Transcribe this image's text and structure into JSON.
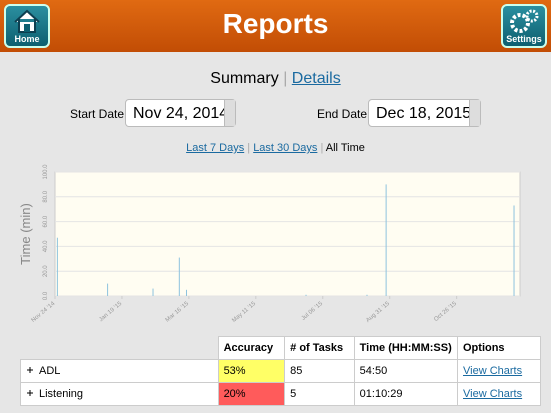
{
  "header": {
    "title": "Reports",
    "left_button": "Home",
    "right_button": "Settings"
  },
  "tabs": {
    "active": "Summary",
    "other": "Details"
  },
  "filters": {
    "start_label": "Start Date",
    "start_value": "Nov 24, 2014",
    "end_label": "End Date",
    "end_value": "Dec 18, 2015",
    "ranges": [
      "Last 7 Days",
      "Last 30 Days",
      "All Time"
    ]
  },
  "chart_data": {
    "type": "bar",
    "y_label": "Time (min)",
    "color": "#8ec3de",
    "grid": true,
    "x": [
      "2014-11-26",
      "2015-01-07",
      "2015-02-14",
      "2015-03-08",
      "2015-03-14",
      "2015-06-22",
      "2015-08-12",
      "2015-08-28",
      "2015-12-13"
    ],
    "values": [
      47,
      10,
      6,
      31,
      5,
      1,
      1,
      90,
      73
    ],
    "xlim": [
      "2014-11-24",
      "2015-12-18"
    ],
    "xticks": [
      {
        "value": "2014-11-24",
        "label": "Nov 24 '14"
      },
      {
        "value": "2015-01-19",
        "label": "Jan 19 '15"
      },
      {
        "value": "2015-03-16",
        "label": "Mar 16 '15"
      },
      {
        "value": "2015-05-11",
        "label": "May 11 '15"
      },
      {
        "value": "2015-07-06",
        "label": "Jul 06 '15"
      },
      {
        "value": "2015-08-31",
        "label": "Aug 31 '15"
      },
      {
        "value": "2015-10-26",
        "label": "Oct 26 '15"
      }
    ],
    "ylim": [
      0,
      100
    ],
    "yticks": [
      {
        "value": 0,
        "label": "0.0"
      },
      {
        "value": 20,
        "label": "20.0"
      },
      {
        "value": 40,
        "label": "40.0"
      },
      {
        "value": 60,
        "label": "60.0"
      },
      {
        "value": 80,
        "label": "80.0"
      },
      {
        "value": 100,
        "label": "100.0"
      }
    ]
  },
  "table": {
    "columns": [
      "Accuracy",
      "# of Tasks",
      "Time (HH:MM:SS)",
      "Options"
    ],
    "rows": [
      {
        "name": "ADL",
        "cells": [
          "53%",
          "85",
          "54:50",
          "View Charts"
        ],
        "accuracy_color": "#ffff66"
      },
      {
        "name": "Listening",
        "cells": [
          "20%",
          "5",
          "01:10:29",
          "View Charts"
        ],
        "accuracy_color": "#ff5b5b"
      }
    ]
  }
}
